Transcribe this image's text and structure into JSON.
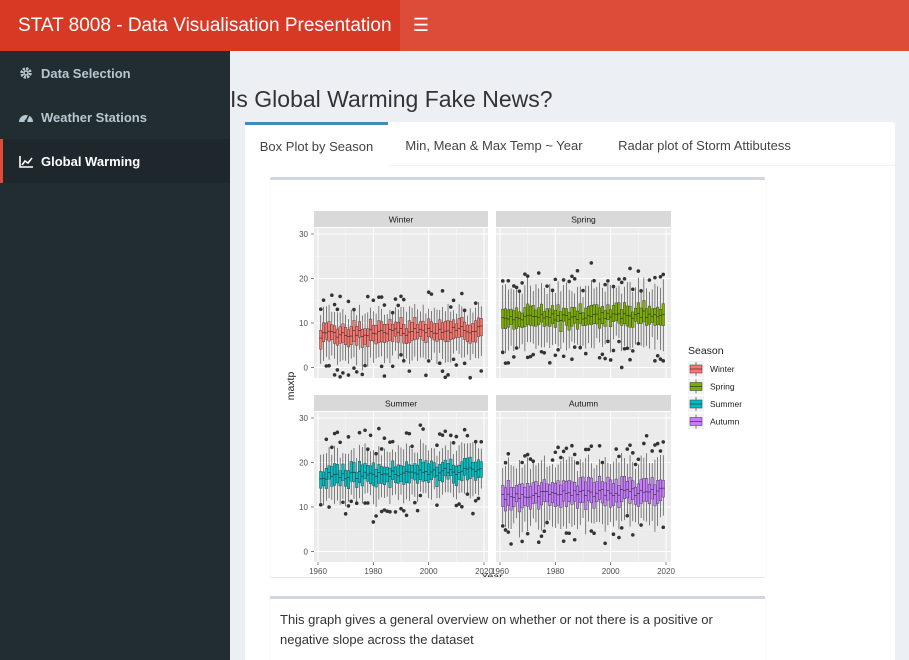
{
  "header": {
    "title": "STAT 8008 - Data Visualisation Presentation",
    "toggle_icon": "hamburger-icon"
  },
  "sidebar": {
    "items": [
      {
        "label": "Data Selection",
        "icon": "gear-icon",
        "active": false
      },
      {
        "label": "Weather Stations",
        "icon": "dashboard-icon",
        "active": false
      },
      {
        "label": "Global Warming",
        "icon": "line-chart-icon",
        "active": true
      }
    ]
  },
  "main": {
    "title": "Is Global Warming Fake News?",
    "tabs": [
      {
        "label": "Box Plot by Season",
        "active": true
      },
      {
        "label": "Min, Mean & Max Temp ~ Year",
        "active": false
      },
      {
        "label": "Radar plot of Storm Attibutess",
        "active": false
      }
    ],
    "description": "This graph gives a general overview on whether or not there is a positive or negative slope across the dataset"
  },
  "chart_data": {
    "type": "boxplot",
    "xlabel": "Year",
    "ylabel": "maxtp",
    "xlim": [
      1960,
      2020
    ],
    "ylim": [
      -5,
      30
    ],
    "x_ticks": [
      1960,
      1980,
      2000,
      2020
    ],
    "x_tick_labels": [
      "1960",
      "1980",
      "2000",
      "2020"
    ],
    "y_ticks": [
      0,
      10,
      20,
      30
    ],
    "y_tick_labels": [
      "0",
      "10",
      "20",
      "30"
    ],
    "grid": true,
    "legend": {
      "title": "Season",
      "placement": "right"
    },
    "series": [
      {
        "name": "Winter",
        "color": "#f8766d",
        "median": 8,
        "q1": 6,
        "q3": 10,
        "low": 2,
        "high": 13
      },
      {
        "name": "Spring",
        "color": "#7cae00",
        "median": 11.5,
        "q1": 9.5,
        "q3": 13.5,
        "low": 5,
        "high": 18
      },
      {
        "name": "Summer",
        "color": "#00bfc4",
        "median": 17.5,
        "q1": 15.5,
        "q3": 19.5,
        "low": 12,
        "high": 23
      },
      {
        "name": "Autumn",
        "color": "#c77cff",
        "median": 13,
        "q1": 10.5,
        "q3": 15.5,
        "low": 6,
        "high": 20
      }
    ]
  }
}
